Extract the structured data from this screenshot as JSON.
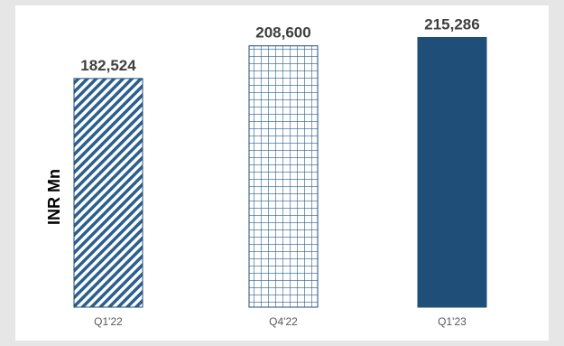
{
  "chart_data": {
    "type": "bar",
    "categories": [
      "Q1'22",
      "Q4'22",
      "Q1'23"
    ],
    "values": [
      182524,
      208600,
      215286
    ],
    "value_labels": [
      "182,524",
      "208,600",
      "215,286"
    ],
    "bar_fills": [
      "diagonal-hatch",
      "grid",
      "solid"
    ],
    "ylabel": "INR Mn",
    "xlabel": "",
    "ylim": [
      0,
      225000
    ],
    "grid": false,
    "legend": "none",
    "colors": {
      "bar": "#1f4e79",
      "value_label": "#3f3f3f",
      "tick_label": "#595959",
      "background": "#ffffff"
    }
  }
}
